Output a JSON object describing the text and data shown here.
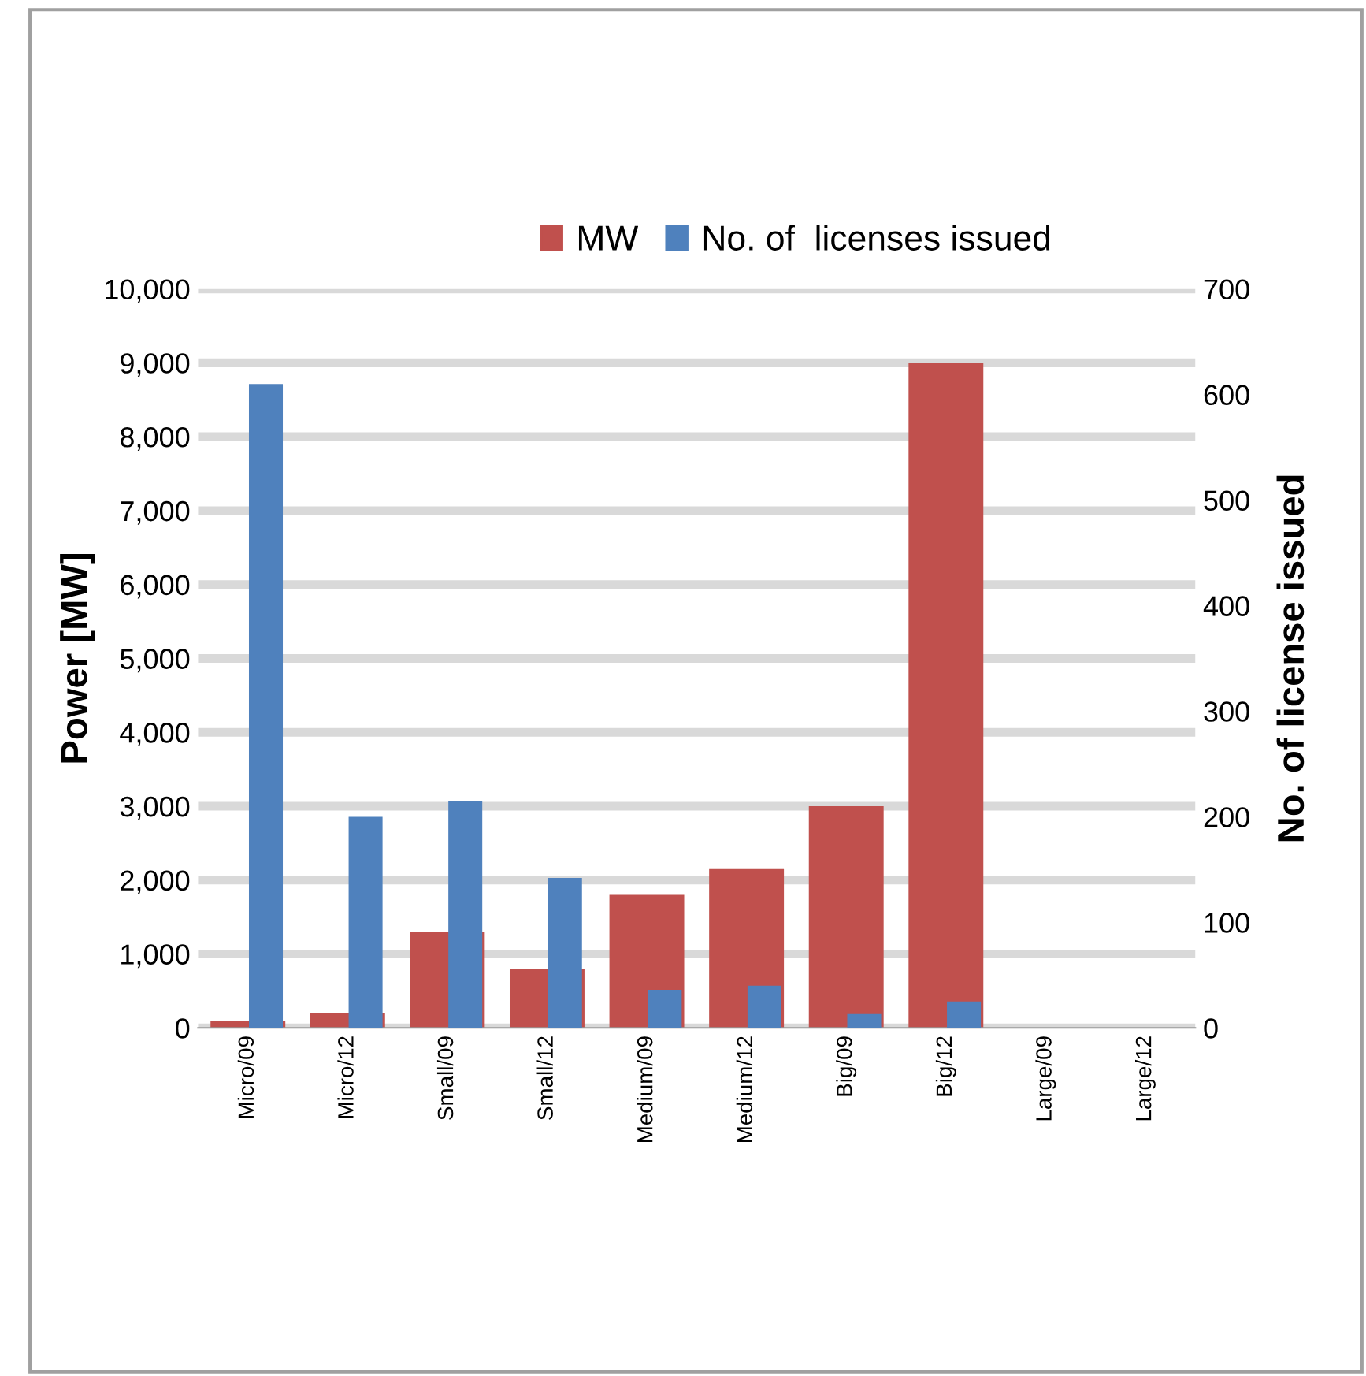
{
  "chart_data": {
    "type": "bar",
    "categories": [
      "Micro/09",
      "Micro/12",
      "Small/09",
      "Small/12",
      "Medium/09",
      "Medium/12",
      "Big/09",
      "Big/12",
      "Large/09",
      "Large/12"
    ],
    "series": [
      {
        "name": "MW",
        "color": "#c0504d",
        "values": [
          100,
          200,
          1300,
          800,
          1800,
          2150,
          3000,
          9000,
          0,
          0
        ]
      },
      {
        "name": "No. of  licenses issued",
        "color": "#4f81bd",
        "axis": "y2",
        "values": [
          610,
          200,
          215,
          142,
          36,
          40,
          13,
          25,
          0,
          0
        ]
      }
    ],
    "ylabel": "Power [MW]",
    "y2label": "No. of license issued",
    "ylim": [
      0,
      10000
    ],
    "yticks": [
      0,
      {
        "value": 1000,
        "label": "1,000"
      },
      {
        "value": 2000,
        "label": "2,000"
      },
      {
        "value": 3000,
        "label": "3,000"
      },
      {
        "value": 4000,
        "label": "4,000"
      },
      {
        "value": 5000,
        "label": "5,000"
      },
      {
        "value": 6000,
        "label": "6,000"
      },
      {
        "value": 7000,
        "label": "7,000"
      },
      {
        "value": 8000,
        "label": "8,000"
      },
      {
        "value": 9000,
        "label": "9,000"
      },
      {
        "value": 10000,
        "label": "10,000"
      }
    ],
    "y2lim": [
      0,
      700
    ],
    "y2ticks": [
      0,
      100,
      200,
      300,
      400,
      500,
      600,
      700
    ],
    "grid": "y",
    "legend": "top"
  }
}
